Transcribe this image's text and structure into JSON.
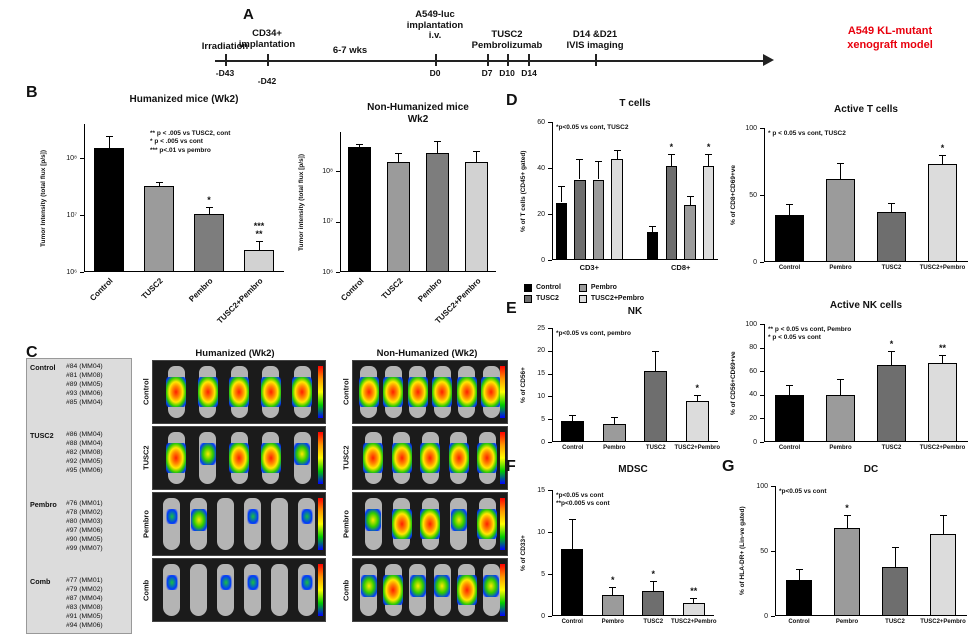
{
  "figure": {
    "panel_labels": {
      "A": "A",
      "B": "B",
      "C": "C",
      "D": "D",
      "E": "E",
      "F": "F",
      "G": "G"
    }
  },
  "timeline": {
    "events_above": {
      "irradiation": "Irradiation",
      "cd34": "CD34+\nimplantation",
      "weeks": "6-7 wks",
      "a549": "A549-luc\nimplantation\ni.v.",
      "tusc2_pembro": "TUSC2\nPembrolizumab",
      "ivis": "D14 &D21\nIVIS imaging"
    },
    "events_below": {
      "d43": "-D43",
      "d42": "-D42",
      "d0": "D0",
      "d7": "D7",
      "d10": "D10",
      "d14": "D14"
    },
    "model_note": "A549 KL-mutant\nxenograft model",
    "model_note_color": "#e8000d"
  },
  "panelC": {
    "humanized_header": "Humanized (Wk2)",
    "nonhumanized_header": "Non-Humanized (Wk2)",
    "id_groups": [
      {
        "group": "Control",
        "ids": [
          "#84 (MM04)",
          "#81 (MM08)",
          "#89 (MM05)",
          "#93 (MM06)",
          "#85 (MM04)"
        ]
      },
      {
        "group": "TUSC2",
        "ids": [
          "#86 (MM04)",
          "#88 (MM04)",
          "#82 (MM08)",
          "#92 (MM05)",
          "#95 (MM06)"
        ]
      },
      {
        "group": "Pembro",
        "ids": [
          "#76 (MM01)",
          "#78 (MM02)",
          "#80 (MM03)",
          "#97 (MM06)",
          "#90 (MM05)",
          "#99 (MM07)"
        ]
      },
      {
        "group": "Comb",
        "ids": [
          "#77 (MM01)",
          "#79 (MM02)",
          "#87 (MM04)",
          "#83 (MM08)",
          "#91 (MM05)",
          "#94 (MM06)"
        ]
      }
    ],
    "humanized_blocks": [
      {
        "label": "Control",
        "mice": [
          "high",
          "high",
          "high",
          "high",
          "high"
        ]
      },
      {
        "label": "TUSC2",
        "mice": [
          "high",
          "med",
          "high",
          "high",
          "med"
        ]
      },
      {
        "label": "Pembro",
        "mice": [
          "low",
          "med",
          "none",
          "low",
          "none",
          "low"
        ]
      },
      {
        "label": "Comb",
        "mice": [
          "low",
          "none",
          "low",
          "low",
          "none",
          "low"
        ]
      }
    ],
    "nonhumanized_blocks": [
      {
        "label": "Control",
        "mice": [
          "high",
          "high",
          "high",
          "high",
          "high",
          "high"
        ]
      },
      {
        "label": "TUSC2",
        "mice": [
          "high",
          "high",
          "high",
          "high",
          "high"
        ]
      },
      {
        "label": "Pembro",
        "mice": [
          "med",
          "high",
          "high",
          "med",
          "high"
        ]
      },
      {
        "label": "Comb",
        "mice": [
          "med",
          "high",
          "med",
          "med",
          "high",
          "med"
        ]
      }
    ]
  },
  "legendD": {
    "entries": [
      {
        "label": "Control",
        "color": "#000000"
      },
      {
        "label": "TUSC2",
        "color": "#6e6e6e"
      },
      {
        "label": "Pembro",
        "color": "#9b9b9b"
      },
      {
        "label": "TUSC2+Pembro",
        "color": "#dcdcdc"
      }
    ]
  },
  "chart_data": [
    {
      "id": "humanized_flux",
      "type": "bar",
      "scale": "log",
      "title": "Humanized mice (Wk2)",
      "ylabel": "Tumor Intensity (total flux [p/s])",
      "ymin": 1000000.0,
      "ymax": 400000000.0,
      "yticks": [
        {
          "v": 1000000.0,
          "label": "10⁶"
        },
        {
          "v": 10000000.0,
          "label": "10⁷"
        },
        {
          "v": 100000000.0,
          "label": "10⁸"
        }
      ],
      "annotation": "** p < .005 vs TUSC2, cont\n* p < .005 vs cont\n*** p<.01 vs pembro",
      "rotate_labels": true,
      "bars": [
        {
          "label": "Control",
          "value": 150000000.0,
          "err": 100000000.0,
          "color": "#000000"
        },
        {
          "label": "TUSC2",
          "value": 32000000.0,
          "err": 6000000.0,
          "color": "#9b9b9b"
        },
        {
          "label": "Pembro",
          "value": 10500000.0,
          "err": 3500000.0,
          "color": "#7d7d7d",
          "sig": "*"
        },
        {
          "label": "TUSC2+Pembro",
          "value": 2400000.0,
          "err": 1100000.0,
          "color": "#d2d2d2",
          "sig": "***\n**"
        }
      ]
    },
    {
      "id": "nonhumanized_flux",
      "type": "bar",
      "scale": "log",
      "title": "Non-Humanized mice\nWk2",
      "ylabel": "Tumor intensity (total flux [p/s])",
      "ymin": 1000000.0,
      "ymax": 600000000.0,
      "yticks": [
        {
          "v": 1000000.0,
          "label": "10⁶"
        },
        {
          "v": 10000000.0,
          "label": "10⁷"
        },
        {
          "v": 100000000.0,
          "label": "10⁸"
        }
      ],
      "rotate_labels": true,
      "bars": [
        {
          "label": "Control",
          "value": 300000000.0,
          "err": 40000000.0,
          "color": "#000000"
        },
        {
          "label": "TUSC2",
          "value": 150000000.0,
          "err": 80000000.0,
          "color": "#9b9b9b"
        },
        {
          "label": "Pembro",
          "value": 230000000.0,
          "err": 160000000.0,
          "color": "#7d7d7d"
        },
        {
          "label": "TUSC2+Pembro",
          "value": 150000000.0,
          "err": 100000000.0,
          "color": "#d2d2d2"
        }
      ]
    },
    {
      "id": "t_cells",
      "type": "bar",
      "scale": "linear",
      "title": "T cells",
      "ylabel": "% of T cells (CD45+ gated)",
      "ymin": 0,
      "ymax": 60,
      "yticks": [
        {
          "v": 0,
          "label": "0"
        },
        {
          "v": 20,
          "label": "20"
        },
        {
          "v": 40,
          "label": "40"
        },
        {
          "v": 60,
          "label": "60"
        }
      ],
      "annotation": "*p<0.05 vs cont, TUSC2",
      "gap_before": [
        4
      ],
      "groups": [
        {
          "label": "CD3+",
          "from": 0,
          "to": 3
        },
        {
          "label": "CD8+",
          "from": 4,
          "to": 7
        }
      ],
      "bars": [
        {
          "value": 25,
          "err": 7,
          "color": "#000000"
        },
        {
          "value": 35,
          "err": 9,
          "color": "#6e6e6e"
        },
        {
          "value": 35,
          "err": 8,
          "color": "#9b9b9b"
        },
        {
          "value": 44,
          "err": 4,
          "color": "#dcdcdc"
        },
        {
          "value": 12,
          "err": 3,
          "color": "#000000"
        },
        {
          "value": 41,
          "err": 5,
          "color": "#6e6e6e",
          "sig": "*"
        },
        {
          "value": 24,
          "err": 4,
          "color": "#9b9b9b"
        },
        {
          "value": 41,
          "err": 5,
          "color": "#dcdcdc",
          "sig": "*"
        }
      ]
    },
    {
      "id": "active_t",
      "type": "bar",
      "scale": "linear",
      "title": "Active T cells",
      "ylabel": "% of CD8+CD69+ve",
      "ymin": 0,
      "ymax": 100,
      "yticks": [
        {
          "v": 0,
          "label": "0"
        },
        {
          "v": 50,
          "label": "50"
        },
        {
          "v": 100,
          "label": "100"
        }
      ],
      "annotation": "* p < 0.05 vs cont, TUSC2",
      "bars": [
        {
          "label": "Control",
          "value": 35,
          "err": 8,
          "color": "#000000"
        },
        {
          "label": "Pembro",
          "value": 62,
          "err": 12,
          "color": "#9b9b9b"
        },
        {
          "label": "TUSC2",
          "value": 37,
          "err": 7,
          "color": "#6e6e6e"
        },
        {
          "label": "TUSC2+Pembro",
          "value": 73,
          "err": 7,
          "color": "#dcdcdc",
          "sig": "*"
        }
      ]
    },
    {
      "id": "nk",
      "type": "bar",
      "scale": "linear",
      "title": "NK",
      "ylabel": "% of CD56+",
      "ymin": 0,
      "ymax": 25,
      "yticks": [
        {
          "v": 0,
          "label": "0"
        },
        {
          "v": 5,
          "label": "5"
        },
        {
          "v": 10,
          "label": "10"
        },
        {
          "v": 15,
          "label": "15"
        },
        {
          "v": 20,
          "label": "20"
        },
        {
          "v": 25,
          "label": "25"
        }
      ],
      "annotation": "*p<0.05 vs cont, pembro",
      "bars": [
        {
          "label": "Control",
          "value": 4.5,
          "err": 1.5,
          "color": "#000000"
        },
        {
          "label": "Pembro",
          "value": 4,
          "err": 1.5,
          "color": "#9b9b9b"
        },
        {
          "label": "TUSC2",
          "value": 15.5,
          "err": 4.5,
          "color": "#6e6e6e"
        },
        {
          "label": "TUSC2+Pembro",
          "value": 9,
          "err": 1.3,
          "color": "#dcdcdc",
          "sig": "*"
        }
      ]
    },
    {
      "id": "active_nk",
      "type": "bar",
      "scale": "linear",
      "title": "Active NK cells",
      "ylabel": "% of CD56+CD69+ve",
      "ymin": 0,
      "ymax": 100,
      "yticks": [
        {
          "v": 0,
          "label": "0"
        },
        {
          "v": 20,
          "label": "20"
        },
        {
          "v": 40,
          "label": "40"
        },
        {
          "v": 60,
          "label": "60"
        },
        {
          "v": 80,
          "label": "80"
        },
        {
          "v": 100,
          "label": "100"
        }
      ],
      "annotation": "** p < 0.05 vs cont, Pembro\n* p < 0.05 vs cont",
      "bars": [
        {
          "label": "Control",
          "value": 40,
          "err": 8,
          "color": "#000000"
        },
        {
          "label": "Pembro",
          "value": 40,
          "err": 13,
          "color": "#9b9b9b"
        },
        {
          "label": "TUSC2",
          "value": 65,
          "err": 12,
          "color": "#6e6e6e",
          "sig": "*"
        },
        {
          "label": "TUSC2+Pembro",
          "value": 67,
          "err": 7,
          "color": "#dcdcdc",
          "sig": "**"
        }
      ]
    },
    {
      "id": "mdsc",
      "type": "bar",
      "scale": "linear",
      "title": "MDSC",
      "ylabel": "% of CD33+",
      "ymin": 0,
      "ymax": 15,
      "yticks": [
        {
          "v": 0,
          "label": "0"
        },
        {
          "v": 5,
          "label": "5"
        },
        {
          "v": 10,
          "label": "10"
        },
        {
          "v": 15,
          "label": "15"
        }
      ],
      "annotation": "*p<0.05 vs cont\n**p<0.005 vs cont",
      "bars": [
        {
          "label": "Control",
          "value": 8,
          "err": 3.5,
          "color": "#000000"
        },
        {
          "label": "Pembro",
          "value": 2.5,
          "err": 1,
          "color": "#9b9b9b",
          "sig": "*"
        },
        {
          "label": "TUSC2",
          "value": 3,
          "err": 1.2,
          "color": "#6e6e6e",
          "sig": "*"
        },
        {
          "label": "TUSC2+Pembro",
          "value": 1.5,
          "err": 0.7,
          "color": "#dcdcdc",
          "sig": "**"
        }
      ]
    },
    {
      "id": "dc",
      "type": "bar",
      "scale": "linear",
      "title": "DC",
      "ylabel": "% of HLA-DR+ (Lin-ve gated)",
      "ymin": 0,
      "ymax": 100,
      "yticks": [
        {
          "v": 0,
          "label": "0"
        },
        {
          "v": 50,
          "label": "50"
        },
        {
          "v": 100,
          "label": "100"
        }
      ],
      "annotation": "*p<0.05 vs cont",
      "bars": [
        {
          "label": "Control",
          "value": 28,
          "err": 8,
          "color": "#000000"
        },
        {
          "label": "Pembro",
          "value": 68,
          "err": 10,
          "color": "#9b9b9b",
          "sig": "*"
        },
        {
          "label": "TUSC2",
          "value": 38,
          "err": 15,
          "color": "#6e6e6e"
        },
        {
          "label": "TUSC2+Pembro",
          "value": 63,
          "err": 15,
          "color": "#dcdcdc"
        }
      ]
    }
  ]
}
